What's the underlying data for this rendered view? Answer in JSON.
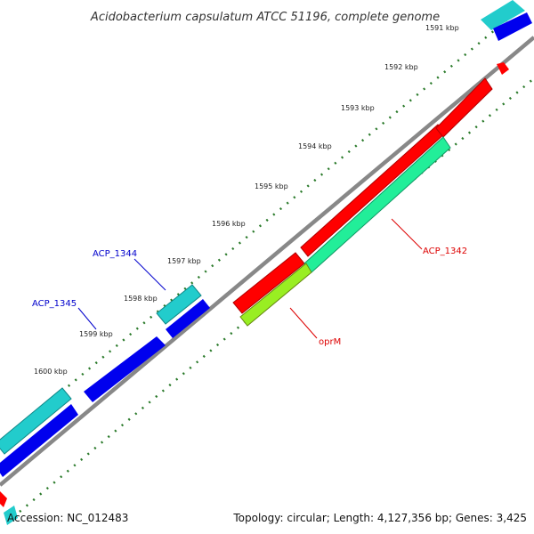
{
  "title": "Acidobacterium capsulatum ATCC 51196, complete genome",
  "ticks": [
    "1591 kbp",
    "1592 kbp",
    "1593 kbp",
    "1594 kbp",
    "1595 kbp",
    "1596 kbp",
    "1597 kbp",
    "1598 kbp",
    "1599 kbp",
    "1600 kbp"
  ],
  "labels": {
    "acp1344": "ACP_1344",
    "acp1345": "ACP_1345",
    "acp1342": "ACP_1342",
    "oprm": "oprM"
  },
  "footer": {
    "accession": "Accession: NC_012483",
    "summary": "Topology: circular; Length: 4,127,356 bp; Genes: 3,425"
  },
  "colors": {
    "backbone": "#888888",
    "cds_forward": "#ff0000",
    "cds_forward_edge": "#b00000",
    "cds_reverse": "#0000ee",
    "gene_cyan": "#22cccc",
    "gene_teal": "#22ee99",
    "gene_lime": "#99ee22",
    "tick_green": "#2a7a2a",
    "label_blue": "#0000cc",
    "label_red": "#dd0000"
  }
}
